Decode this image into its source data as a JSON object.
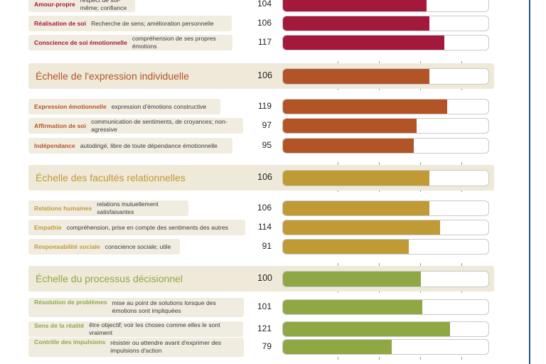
{
  "chart_data": {
    "type": "bar",
    "scale_max": 150,
    "ticks": [
      40,
      70,
      100,
      130
    ],
    "colors": {
      "estime": "#a3193b",
      "expression": "#b35426",
      "relationnelles": "#c09a35",
      "decisionnel": "#8fa843"
    },
    "groups": [
      {
        "key": "estime",
        "title": "",
        "score": null,
        "items": [
          {
            "name": "Amour-propre",
            "desc": "respect de soi-même; confiance",
            "value": 104
          },
          {
            "name": "Réalisation de soi",
            "desc": "Recherche de sens; amélioration personnelle",
            "value": 106
          },
          {
            "name": "Conscience de soi émotionnelle",
            "desc": "compréhension de ses propres émotions",
            "value": 117
          }
        ]
      },
      {
        "key": "expression",
        "title": "Échelle de l'expression individuelle",
        "score": 106,
        "items": [
          {
            "name": "Expression émotionnelle",
            "desc": "expression d'émotions constructive",
            "value": 119
          },
          {
            "name": "Affirmation de soi",
            "desc": "communication de sentiments, de croyances; non-agressive",
            "value": 97
          },
          {
            "name": "Indépendance",
            "desc": "autodirigé, libre de toute dépendance émotionnelle",
            "value": 95
          }
        ]
      },
      {
        "key": "relationnelles",
        "title": "Échelle des facultés relationnelles",
        "score": 106,
        "items": [
          {
            "name": "Relations humaines",
            "desc": "relations mutuellement satisfaisantes",
            "value": 106
          },
          {
            "name": "Empathie",
            "desc": "compréhension, prise en compte des sentiments des autres",
            "value": 114
          },
          {
            "name": "Responsabilité sociale",
            "desc": "conscience sociale; utile",
            "value": 91
          }
        ]
      },
      {
        "key": "decisionnel",
        "title": "Échelle du processus décisionnel",
        "score": 100,
        "items": [
          {
            "name": "Résolution de problèmes",
            "desc": "mise au point de solutions lorsque des émotions sont impliquées",
            "value": 101
          },
          {
            "name": "Sens de la réalité",
            "desc": "être objectif; voir les choses comme elles le sont vraiment",
            "value": 121
          },
          {
            "name": "Contrôle des impulsions",
            "desc": "résister ou attendre avant d'exprimer des impulsions d'action",
            "value": 79
          }
        ]
      }
    ]
  }
}
